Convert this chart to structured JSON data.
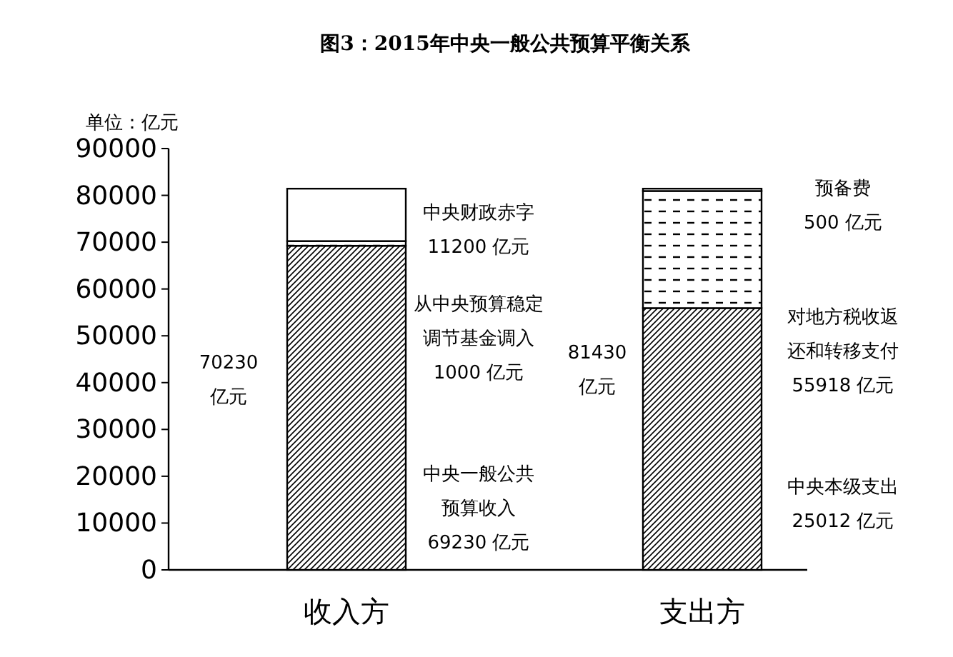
{
  "chart_data": {
    "type": "bar",
    "stacked": true,
    "title": "图3：2015年中央一般公共预算平衡关系",
    "ylabel": "单位：亿元",
    "categories": [
      "收入方",
      "支出方"
    ],
    "series": [
      {
        "color": "#000000",
        "values": [
          69230,
          55918
        ]
      },
      {
        "color": "#000000",
        "values": [
          1000,
          25012
        ]
      },
      {
        "color": "#ffffff",
        "values": [
          11200,
          500
        ]
      }
    ],
    "ylim": [
      0,
      90000
    ],
    "yticks": [
      0,
      10000,
      20000,
      30000,
      40000,
      50000,
      60000,
      70000,
      80000,
      90000
    ],
    "annotations": [
      "中央财政赤字11200 亿元",
      "从中央预算稳定调节基金调入1000 亿元",
      "中央一般公共预算收入69230 亿元",
      "70230亿元",
      "预备费500 亿元",
      "对地方税收返还和转移支付55918 亿元",
      "中央本级支出25012 亿元",
      "81430亿元"
    ],
    "grid": false
  }
}
